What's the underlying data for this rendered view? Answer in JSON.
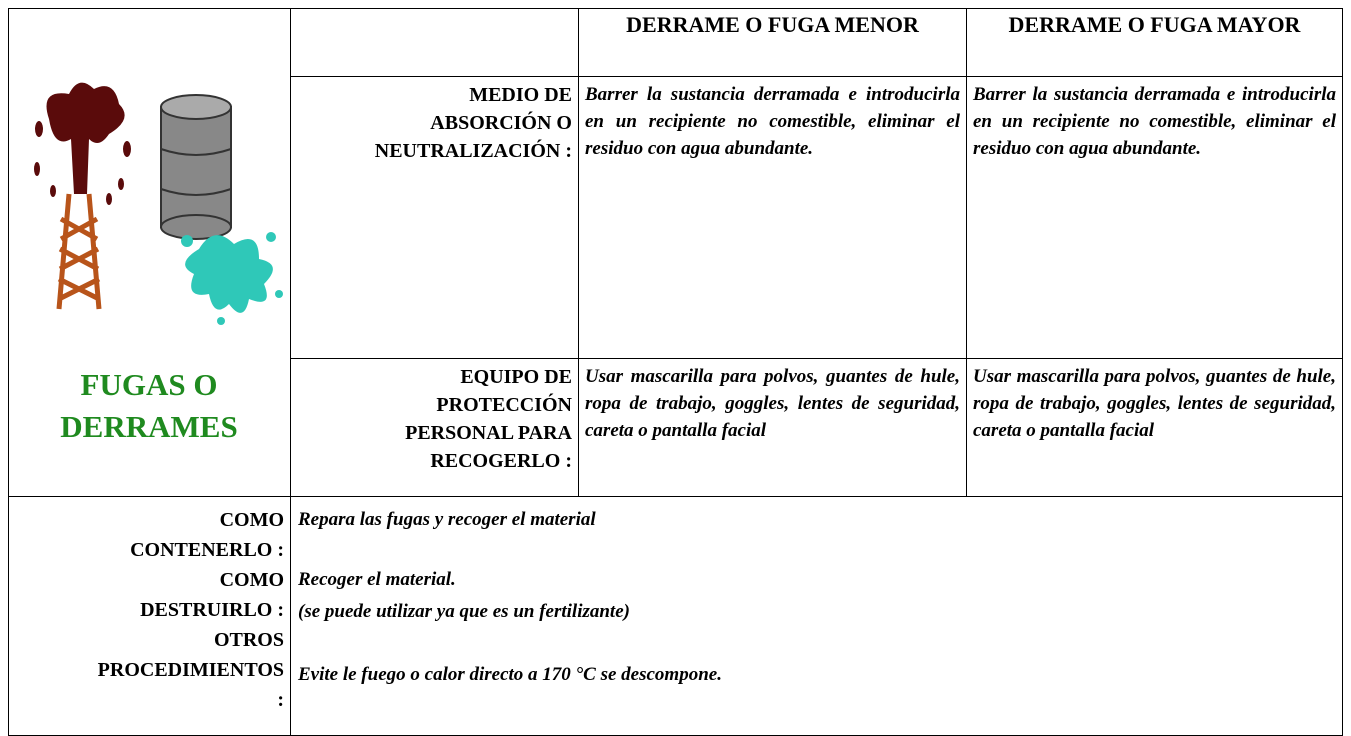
{
  "header": {
    "title": "FUGAS O DERRAMES"
  },
  "table": {
    "columns": [
      "DERRAME O FUGA MENOR",
      "DERRAME O FUGA MAYOR"
    ],
    "rows": [
      {
        "label": [
          "MEDIO DE",
          "ABSORCIÓN O",
          "NEUTRALIZACIÓN :"
        ],
        "cells": [
          "Barrer la sustancia derramada e introducirla en un recipiente no comestible, eliminar el residuo con agua abundante.",
          "Barrer la sustancia derramada e introducirla en un recipiente no comestible, eliminar el residuo con agua abundante."
        ]
      },
      {
        "label": [
          "EQUIPO DE",
          "PROTECCIÓN",
          "PERSONAL PARA",
          "RECOGERLO :"
        ],
        "cells": [
          "Usar mascarilla para polvos, guantes de hule, ropa de trabajo, goggles, lentes de seguridad, careta o pantalla facial",
          "Usar mascarilla para polvos, guantes de hule, ropa de trabajo, goggles, lentes de seguridad, careta o pantalla facial"
        ]
      }
    ]
  },
  "procedures": [
    {
      "label": [
        "COMO",
        "CONTENERLO :"
      ],
      "text": [
        "Repara las fugas y recoger el material"
      ]
    },
    {
      "label": [
        "COMO",
        "DESTRUIRLO :"
      ],
      "text": [
        "Recoger el material.",
        "(se puede utilizar ya que es un fertilizante)"
      ]
    },
    {
      "label": [
        "OTROS",
        "PROCEDIMIENTOS",
        ":"
      ],
      "text": [
        "Evite le fuego o calor directo a 170 °C  se descompone."
      ]
    }
  ]
}
